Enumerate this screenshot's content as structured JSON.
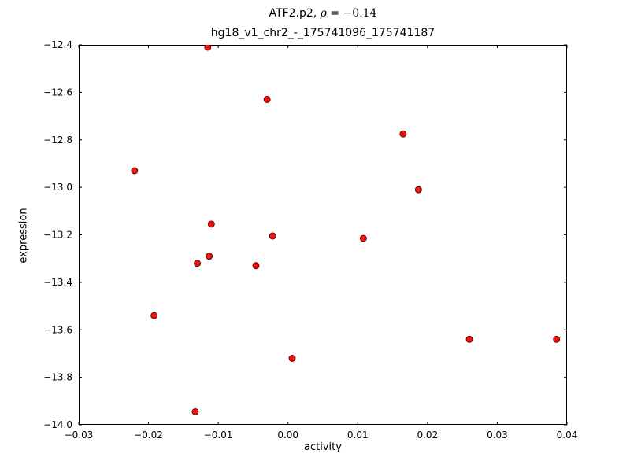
{
  "title": {
    "line1_prefix": "ATF2.p2, ",
    "line1_rho": "ρ",
    "line1_value": " = −0.14",
    "line2": "hg18_v1_chr2_-_175741096_175741187"
  },
  "chart_data": {
    "type": "scatter",
    "title": "ATF2.p2, ρ = −0.14",
    "subtitle": "hg18_v1_chr2_-_175741096_175741187",
    "xlabel": "activity",
    "ylabel": "expression",
    "xlim": [
      -0.03,
      0.04
    ],
    "ylim": [
      -14.0,
      -12.4
    ],
    "grid": false,
    "xticks": [
      {
        "v": -0.03,
        "label": "−0.03"
      },
      {
        "v": -0.02,
        "label": "−0.02"
      },
      {
        "v": -0.01,
        "label": "−0.01"
      },
      {
        "v": 0.0,
        "label": "0.00"
      },
      {
        "v": 0.01,
        "label": "0.01"
      },
      {
        "v": 0.02,
        "label": "0.02"
      },
      {
        "v": 0.03,
        "label": "0.03"
      },
      {
        "v": 0.04,
        "label": "0.04"
      }
    ],
    "yticks": [
      {
        "v": -12.4,
        "label": "−12.4"
      },
      {
        "v": -12.6,
        "label": "−12.6"
      },
      {
        "v": -12.8,
        "label": "−12.8"
      },
      {
        "v": -13.0,
        "label": "−13.0"
      },
      {
        "v": -13.2,
        "label": "−13.2"
      },
      {
        "v": -13.4,
        "label": "−13.4"
      },
      {
        "v": -13.6,
        "label": "−13.6"
      },
      {
        "v": -13.8,
        "label": "−13.8"
      },
      {
        "v": -14.0,
        "label": "−14.0"
      }
    ],
    "marker": {
      "shape": "circle",
      "color": "#ee1411",
      "edge": "#5f0000",
      "radius": 4
    },
    "points": [
      [
        -0.0115,
        -12.41
      ],
      [
        -0.003,
        -12.63
      ],
      [
        0.0165,
        -12.775
      ],
      [
        -0.022,
        -12.93
      ],
      [
        0.0187,
        -13.01
      ],
      [
        -0.011,
        -13.155
      ],
      [
        -0.0022,
        -13.205
      ],
      [
        0.0108,
        -13.215
      ],
      [
        -0.0113,
        -13.29
      ],
      [
        -0.013,
        -13.32
      ],
      [
        -0.0046,
        -13.33
      ],
      [
        -0.0192,
        -13.54
      ],
      [
        0.026,
        -13.64
      ],
      [
        0.0385,
        -13.64
      ],
      [
        0.0006,
        -13.72
      ],
      [
        -0.0133,
        -13.945
      ]
    ]
  }
}
